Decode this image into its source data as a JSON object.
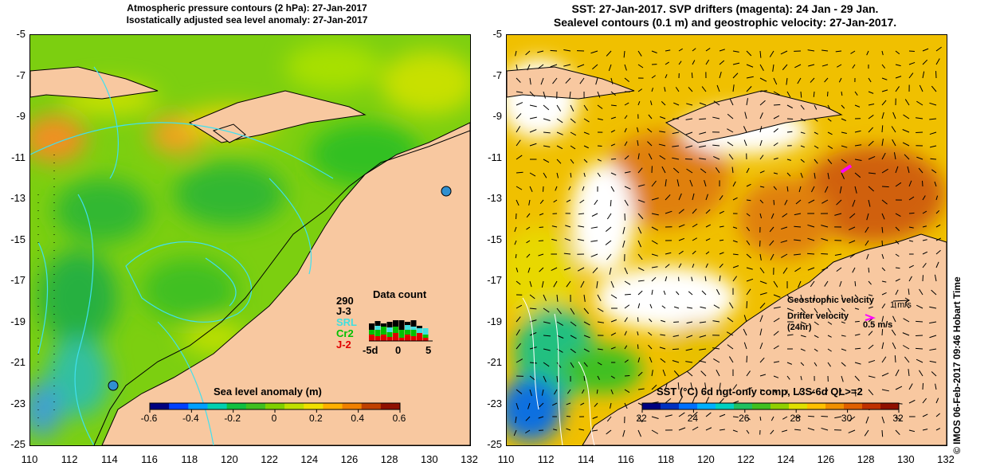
{
  "left_title": {
    "line1": "Atmospheric pressure contours (2 hPa): 27-Jan-2017",
    "line2": "Isostatically adjusted sea level anomaly: 27-Jan-2017"
  },
  "right_title": {
    "line1": "SST: 27-Jan-2017. SVP drifters (magenta): 24 Jan - 29 Jan.",
    "line2": "Sealevel contours (0.1 m) and geostrophic velocity: 27-Jan-2017."
  },
  "axes": {
    "lat_ticks": [
      "-5",
      "-7",
      "-9",
      "-11",
      "-13",
      "-15",
      "-17",
      "-19",
      "-21",
      "-23",
      "-25"
    ],
    "lon_ticks": [
      "110",
      "112",
      "114",
      "116",
      "118",
      "120",
      "122",
      "124",
      "126",
      "128",
      "130",
      "132"
    ]
  },
  "left_colorbar": {
    "label": "Sea level anomaly (m)",
    "ticks": [
      "-0.6",
      "-0.4",
      "-0.2",
      "0",
      "0.2",
      "0.4",
      "0.6"
    ],
    "colors": [
      "#00007f",
      "#0040ff",
      "#00a0ff",
      "#00d0b0",
      "#10c040",
      "#40c020",
      "#80d000",
      "#c0e000",
      "#f0e000",
      "#ffb000",
      "#f08000",
      "#c04000",
      "#901000"
    ]
  },
  "right_colorbar": {
    "label": "SST (°C) 6d ngt-only comp, L3S-6d QL>=2",
    "ticks": [
      "22",
      "24",
      "26",
      "28",
      "30",
      "32"
    ],
    "colors": [
      "#00007f",
      "#0030c0",
      "#0070ff",
      "#00b0ff",
      "#00d0c0",
      "#20c060",
      "#40c020",
      "#90d000",
      "#e0e000",
      "#ffc000",
      "#f09000",
      "#e06000",
      "#c03000",
      "#901000"
    ]
  },
  "data_count": {
    "title": "Data count",
    "count": "290",
    "missions": [
      {
        "name": "J-3",
        "color": "#000000"
      },
      {
        "name": "SRL",
        "color": "#40e0e0"
      },
      {
        "name": "Cr2",
        "color": "#00c000"
      },
      {
        "name": "J-2",
        "color": "#e00000"
      }
    ],
    "x_ticks": [
      "-5d",
      "0",
      "5"
    ]
  },
  "velocity_legend": {
    "geostrophic": "Geostrophic velocity",
    "geostrophic_scale": "1 m/s",
    "drifter_line1": "Drifter velocity",
    "drifter_line2": "(24hr)",
    "drifter_scale": "0.5 m/s"
  },
  "credit": "© IMOS 06-Feb-2017 09:46 Hobart Time",
  "colors": {
    "land": "#f8c8a0",
    "drifter": "#ff00ff",
    "contour_cyan": "#40e0f0",
    "contour_white": "#ffffff"
  }
}
